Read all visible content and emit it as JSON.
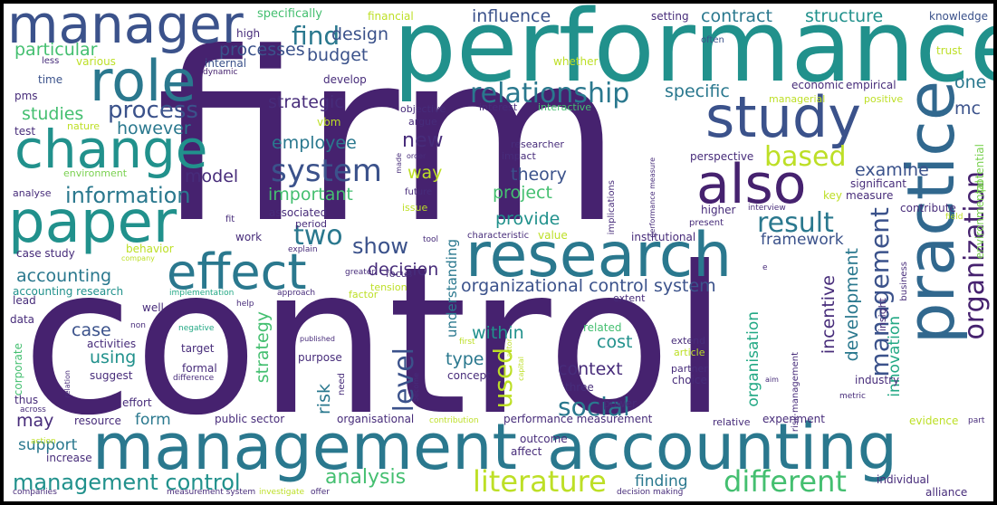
{
  "palette": {
    "frame": "#000000",
    "background": "#ffffff",
    "dark_purple": "#46226f",
    "purple": "#472c7a",
    "indigo": "#3b528b",
    "blue": "#31688e",
    "steel": "#2a788e",
    "teal": "#21918c",
    "sea_green": "#22a884",
    "green": "#44bf70",
    "lime": "#7ad151",
    "yellow": "#bddf26"
  },
  "words": {
    "w_firm": "firm",
    "w_control": "control",
    "w_performance": "performance",
    "w_management": "management",
    "w_accounting": "accounting",
    "w_research": "research",
    "w_practice": "practice",
    "w_paper": "paper",
    "w_manager": "manager",
    "w_role": "role",
    "w_change": "change",
    "w_study": "study",
    "w_effect": "effect",
    "w_also": "also",
    "w_system": "system",
    "w_relationship": "relationship",
    "w_literature": "literature",
    "w_different": "different",
    "w_management_control": "management control",
    "w_organization": "organization",
    "w_information": "information",
    "w_result": "result",
    "w_based": "based",
    "w_two": "two",
    "w_show": "show",
    "w_process": "process",
    "w_find": "find",
    "w_level": "level",
    "w_used": "used",
    "w_social": "social",
    "w_analysis": "analysis",
    "w_management_v": "management",
    "w_influence": "influence",
    "w_contract": "contract",
    "w_structure": "structure",
    "w_particular": "particular",
    "w_processes": "processes",
    "w_design": "design",
    "w_budget": "budget",
    "w_strategic": "strategic",
    "w_specific": "specific",
    "w_one": "one",
    "w_mc": "mc",
    "w_studies": "studies",
    "w_however": "however",
    "w_employee": "employee",
    "w_new": "new",
    "w_examine": "examine",
    "w_model": "model",
    "w_way": "way",
    "w_theory": "theory",
    "w_project": "project",
    "w_important": "important",
    "w_provide": "provide",
    "w_framework": "framework",
    "w_decision": "decision",
    "w_org_control_system": "organizational control system",
    "w_development": "development",
    "w_incentive": "incentive",
    "w_organisation": "organisation",
    "w_innovation": "innovation",
    "w_within": "within",
    "w_using": "using",
    "w_cost": "cost",
    "w_context": "context",
    "w_type": "type",
    "w_case": "case",
    "w_strategy": "strategy",
    "w_risk": "risk",
    "w_may": "may",
    "w_form": "form",
    "w_support": "support",
    "w_finding": "finding",
    "w_accounting_mid": "accounting",
    "w_understanding": "understanding",
    "w_specifically": "specifically",
    "w_financial": "financial",
    "w_setting": "setting",
    "w_knowledge": "knowledge",
    "w_high": "high",
    "w_often": "often",
    "w_trust": "trust",
    "w_less": "less",
    "w_various": "various",
    "w_internal": "internal",
    "w_dynamic": "dynamic",
    "w_whether": "whether",
    "w_pms": "pms",
    "w_time": "time",
    "w_develop": "develop",
    "w_economic": "economic",
    "w_empirical": "empirical",
    "w_managerial": "managerial",
    "w_positive": "positive",
    "w_test": "test",
    "w_nature": "nature",
    "w_vbm": "vbm",
    "w_argue": "argue",
    "w_interest": "interest",
    "w_interactive": "interactive",
    "w_objective": "objective",
    "w_researcher": "researcher",
    "w_impact": "impact",
    "w_perspective": "perspective",
    "w_environmental": "environmental",
    "w_potential": "potential",
    "w_environment": "environment",
    "w_made": "made",
    "w_order": "order",
    "w_significant": "significant",
    "w_key": "key",
    "w_measure": "measure",
    "w_analyse": "analyse",
    "w_future": "future",
    "w_issue": "issue",
    "w_perf_measure": "performance measure",
    "w_implications": "implications",
    "w_higher": "higher",
    "w_interview": "interview",
    "w_field": "field",
    "w_contribute": "contribute",
    "w_fit": "fit",
    "w_associated": "associated",
    "w_period": "period",
    "w_present": "present",
    "w_case_study": "case study",
    "w_work": "work",
    "w_explain": "explain",
    "w_tool": "tool",
    "w_characteristic": "characteristic",
    "w_value": "value",
    "w_institutional": "institutional",
    "w_behavior": "behavior",
    "w_company": "company",
    "w_greater": "greater",
    "w_focus": "focus",
    "w_e": "e",
    "w_business": "business",
    "w_acc_research": "accounting research",
    "w_tension": "tension",
    "w_lead": "lead",
    "w_implementation": "implementation",
    "w_help": "help",
    "w_approach": "approach",
    "w_factor": "factor",
    "w_extent": "extent",
    "w_insight": "insight",
    "w_well": "well",
    "w_data": "data",
    "w_non": "non",
    "w_related": "related",
    "w_negative": "negative",
    "w_activities": "activities",
    "w_published": "published",
    "w_target": "target",
    "w_first": "first",
    "w_extend": "extend",
    "w_article": "article",
    "w_corporate": "corporate",
    "w_suggest": "suggest",
    "w_purpose": "purpose",
    "w_actor": "actor",
    "w_partner": "partner",
    "w_industry": "industry",
    "w_formal": "formal",
    "w_concept": "concept",
    "w_capital": "capital",
    "w_choice": "choice",
    "w_risk_management": "risk management",
    "w_relation": "relation",
    "w_difference": "difference",
    "w_three": "three",
    "w_need": "need",
    "w_aim": "aim",
    "w_thus": "thus",
    "w_effort": "effort",
    "w_become": "become",
    "w_power": "power",
    "w_metric": "metric",
    "w_across": "across",
    "w_resource": "resource",
    "w_public_sector": "public sector",
    "w_organisational": "organisational",
    "w_contribution": "contribution",
    "w_perf_measurement": "performance measurement",
    "w_relative": "relative",
    "w_experiment": "experiment",
    "w_evidence": "evidence",
    "w_part": "part",
    "w_action": "action",
    "w_increase": "increase",
    "w_outcome": "outcome",
    "w_affect": "affect",
    "w_individual": "individual",
    "w_alliance": "alliance",
    "w_companies": "companies",
    "w_measurement_system": "measurement system",
    "w_investigate": "investigate",
    "w_offer": "offer",
    "w_decision_making": "decision making"
  }
}
